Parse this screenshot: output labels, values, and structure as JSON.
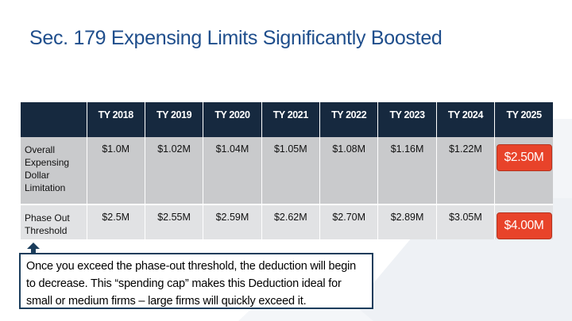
{
  "title": "Sec. 179 Expensing Limits Significantly Boosted",
  "table": {
    "headers": [
      "",
      "TY 2018",
      "TY 2019",
      "TY 2020",
      "TY 2021",
      "TY 2022",
      "TY 2023",
      "TY 2024",
      "TY 2025"
    ],
    "rows": [
      {
        "label": "Overall Expensing Dollar Limitation",
        "values": [
          "$1.0M",
          "$1.02M",
          "$1.04M",
          "$1.05M",
          "$1.08M",
          "$1.16M",
          "$1.22M",
          "$2.50M"
        ]
      },
      {
        "label": "Phase Out Threshold",
        "values": [
          "$2.5M",
          "$2.55M",
          "$2.59M",
          "$2.62M",
          "$2.70M",
          "$2.89M",
          "$3.05M",
          "$4.00M"
        ]
      }
    ]
  },
  "callout": {
    "text": "Once you exceed the phase-out threshold, the deduction will begin to decrease.  This “spending cap” makes this Deduction ideal for small or medium firms – large firms will quickly exceed it."
  },
  "colors": {
    "title": "#1f4e8c",
    "header_bg": "#16293f",
    "highlight": "#e8432a",
    "row1_bg": "#c9cacc",
    "row2_bg": "#e1e2e4"
  }
}
